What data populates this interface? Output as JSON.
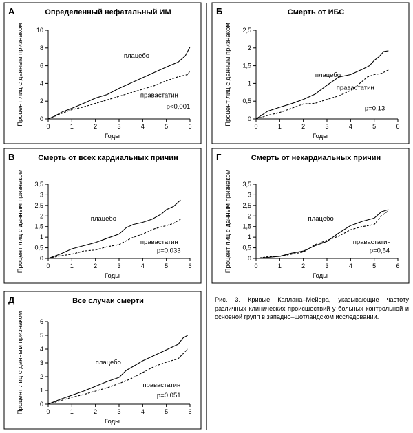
{
  "caption": "Рис. 3. Кривые Каплана–Мейера, указывающие частоту различных клинических происшествий у больных контрольной и основной групп в западно–шотландском исследовании.",
  "chart_data": [
    {
      "type": "line",
      "panel_letter": "А",
      "title": "Определенный нефатальный ИМ",
      "xlabel": "Годы",
      "ylabel": "Процент лиц с данным признаком",
      "xlim": [
        0,
        6
      ],
      "ylim": [
        0,
        10
      ],
      "x_ticks": [
        "0",
        "1",
        "2",
        "3",
        "4",
        "5",
        "6"
      ],
      "y_ticks": [
        "0",
        "2",
        "4",
        "6",
        "8",
        "10"
      ],
      "p_value": "p<0,001",
      "series": [
        {
          "name": "плацебо",
          "style": "solid",
          "points": [
            [
              0,
              0
            ],
            [
              0.3,
              0.35
            ],
            [
              0.6,
              0.8
            ],
            [
              1,
              1.2
            ],
            [
              1.5,
              1.75
            ],
            [
              2,
              2.35
            ],
            [
              2.5,
              2.75
            ],
            [
              3,
              3.45
            ],
            [
              3.5,
              4.05
            ],
            [
              4,
              4.65
            ],
            [
              4.5,
              5.25
            ],
            [
              5,
              5.85
            ],
            [
              5.5,
              6.4
            ],
            [
              5.8,
              7.1
            ],
            [
              6,
              8.1
            ]
          ]
        },
        {
          "name": "правастатин",
          "style": "dashed",
          "points": [
            [
              0,
              0
            ],
            [
              0.5,
              0.55
            ],
            [
              1,
              1.05
            ],
            [
              1.5,
              1.35
            ],
            [
              2,
              1.75
            ],
            [
              2.5,
              2.15
            ],
            [
              3,
              2.55
            ],
            [
              3.5,
              2.95
            ],
            [
              4,
              3.35
            ],
            [
              4.5,
              3.75
            ],
            [
              5,
              4.3
            ],
            [
              5.5,
              4.75
            ],
            [
              5.9,
              5.0
            ],
            [
              6,
              5.4
            ]
          ]
        }
      ],
      "series_label_positions": [
        [
          3.2,
          6.9
        ],
        [
          3.9,
          2.45
        ]
      ],
      "p_position": [
        5.0,
        1.15
      ]
    },
    {
      "type": "line",
      "panel_letter": "Б",
      "title": "Смерть от ИБС",
      "xlabel": "Годы",
      "ylabel": "Процент лиц с данным признаком",
      "xlim": [
        0,
        6
      ],
      "ylim": [
        0,
        2.5
      ],
      "x_ticks": [
        "0",
        "1",
        "2",
        "3",
        "4",
        "5",
        "6"
      ],
      "y_ticks": [
        "0",
        "0,5",
        "1",
        "1,5",
        "2",
        "2,5"
      ],
      "p_value": "p=0,13",
      "series": [
        {
          "name": "плацебо",
          "style": "solid",
          "points": [
            [
              0,
              0
            ],
            [
              0.5,
              0.22
            ],
            [
              1,
              0.33
            ],
            [
              1.5,
              0.43
            ],
            [
              2,
              0.55
            ],
            [
              2.5,
              0.7
            ],
            [
              3,
              0.95
            ],
            [
              3.5,
              1.18
            ],
            [
              4,
              1.25
            ],
            [
              4.5,
              1.4
            ],
            [
              4.8,
              1.5
            ],
            [
              5,
              1.65
            ],
            [
              5.2,
              1.75
            ],
            [
              5.4,
              1.9
            ],
            [
              5.6,
              1.92
            ]
          ]
        },
        {
          "name": "правастатин",
          "style": "dashed",
          "points": [
            [
              0,
              0
            ],
            [
              0.5,
              0.1
            ],
            [
              1,
              0.18
            ],
            [
              1.5,
              0.3
            ],
            [
              2,
              0.42
            ],
            [
              2.5,
              0.44
            ],
            [
              3,
              0.55
            ],
            [
              3.5,
              0.65
            ],
            [
              4,
              0.8
            ],
            [
              4.3,
              0.95
            ],
            [
              4.7,
              1.18
            ],
            [
              5.0,
              1.25
            ],
            [
              5.3,
              1.28
            ],
            [
              5.6,
              1.38
            ]
          ]
        }
      ],
      "series_label_positions": [
        [
          2.5,
          1.18
        ],
        [
          3.4,
          0.82
        ]
      ],
      "p_position": [
        4.6,
        0.24
      ]
    },
    {
      "type": "line",
      "panel_letter": "В",
      "title": "Смерть от всех кардиальных причин",
      "xlabel": "Годы",
      "ylabel": "Процент лиц с данным признаком",
      "xlim": [
        0,
        6
      ],
      "ylim": [
        0,
        3.5
      ],
      "x_ticks": [
        "0",
        "1",
        "2",
        "3",
        "4",
        "5",
        "6"
      ],
      "y_ticks": [
        "0",
        "0,5",
        "1",
        "1,5",
        "2",
        "2,5",
        "3",
        "3,5"
      ],
      "p_value": "p=0,033",
      "series": [
        {
          "name": "плацебо",
          "style": "solid",
          "points": [
            [
              0,
              0
            ],
            [
              0.5,
              0.2
            ],
            [
              1,
              0.45
            ],
            [
              1.5,
              0.6
            ],
            [
              2,
              0.75
            ],
            [
              2.5,
              0.95
            ],
            [
              3,
              1.15
            ],
            [
              3.3,
              1.45
            ],
            [
              3.6,
              1.6
            ],
            [
              4,
              1.7
            ],
            [
              4.4,
              1.85
            ],
            [
              4.8,
              2.1
            ],
            [
              5,
              2.3
            ],
            [
              5.3,
              2.45
            ],
            [
              5.6,
              2.75
            ]
          ]
        },
        {
          "name": "правастатин",
          "style": "dashed",
          "points": [
            [
              0,
              0
            ],
            [
              0.5,
              0.12
            ],
            [
              1,
              0.2
            ],
            [
              1.5,
              0.35
            ],
            [
              2,
              0.4
            ],
            [
              2.5,
              0.55
            ],
            [
              3,
              0.65
            ],
            [
              3.5,
              0.95
            ],
            [
              4,
              1.15
            ],
            [
              4.5,
              1.4
            ],
            [
              5,
              1.55
            ],
            [
              5.3,
              1.65
            ],
            [
              5.6,
              1.85
            ]
          ]
        }
      ],
      "series_label_positions": [
        [
          1.8,
          1.78
        ],
        [
          3.9,
          0.68
        ]
      ],
      "p_position": [
        4.6,
        0.28
      ]
    },
    {
      "type": "line",
      "panel_letter": "Г",
      "title": "Смерть от некардиальных причин",
      "xlabel": "Годы",
      "ylabel": "Процент лиц с данным признаком",
      "xlim": [
        0,
        6
      ],
      "ylim": [
        0,
        3.5
      ],
      "x_ticks": [
        "0",
        "1",
        "2",
        "3",
        "4",
        "5",
        "6"
      ],
      "y_ticks": [
        "0",
        "0,5",
        "1",
        "1,5",
        "2",
        "2,5",
        "3",
        "3,5"
      ],
      "p_value": "p=0,54",
      "series": [
        {
          "name": "плацебо",
          "style": "solid",
          "points": [
            [
              0,
              0
            ],
            [
              0.5,
              0.05
            ],
            [
              1,
              0.1
            ],
            [
              1.5,
              0.25
            ],
            [
              2,
              0.35
            ],
            [
              2.5,
              0.6
            ],
            [
              3,
              0.8
            ],
            [
              3.5,
              1.2
            ],
            [
              4,
              1.55
            ],
            [
              4.5,
              1.75
            ],
            [
              5,
              1.9
            ],
            [
              5.3,
              2.2
            ],
            [
              5.6,
              2.3
            ]
          ]
        },
        {
          "name": "правастатин",
          "style": "dashed",
          "points": [
            [
              0,
              0
            ],
            [
              0.5,
              0.08
            ],
            [
              1,
              0.1
            ],
            [
              1.5,
              0.2
            ],
            [
              2,
              0.3
            ],
            [
              2.5,
              0.65
            ],
            [
              3,
              0.85
            ],
            [
              3.5,
              1.05
            ],
            [
              4,
              1.35
            ],
            [
              4.5,
              1.5
            ],
            [
              5,
              1.6
            ],
            [
              5.3,
              2.0
            ],
            [
              5.6,
              2.25
            ]
          ]
        }
      ],
      "series_label_positions": [
        [
          2.2,
          1.78
        ],
        [
          4.1,
          0.68
        ]
      ],
      "p_position": [
        4.8,
        0.28
      ]
    },
    {
      "type": "line",
      "panel_letter": "Д",
      "title": "Все случаи смерти",
      "xlabel": "Годы",
      "ylabel": "Процент лиц с данным признаком",
      "xlim": [
        0,
        6
      ],
      "ylim": [
        0,
        6
      ],
      "x_ticks": [
        "0",
        "1",
        "2",
        "3",
        "4",
        "5",
        "6"
      ],
      "y_ticks": [
        "0",
        "1",
        "2",
        "3",
        "4",
        "5",
        "6"
      ],
      "p_value": "p=0,051",
      "series": [
        {
          "name": "плацебо",
          "style": "solid",
          "points": [
            [
              0,
              0
            ],
            [
              0.5,
              0.35
            ],
            [
              1,
              0.65
            ],
            [
              1.5,
              0.95
            ],
            [
              2,
              1.3
            ],
            [
              2.5,
              1.65
            ],
            [
              3,
              1.95
            ],
            [
              3.3,
              2.45
            ],
            [
              3.6,
              2.75
            ],
            [
              4,
              3.15
            ],
            [
              4.5,
              3.55
            ],
            [
              5,
              3.95
            ],
            [
              5.5,
              4.35
            ],
            [
              5.7,
              4.8
            ],
            [
              5.9,
              5.0
            ]
          ]
        },
        {
          "name": "правастатин",
          "style": "dashed",
          "points": [
            [
              0,
              0
            ],
            [
              0.5,
              0.25
            ],
            [
              1,
              0.5
            ],
            [
              1.5,
              0.7
            ],
            [
              2,
              0.95
            ],
            [
              2.5,
              1.2
            ],
            [
              3,
              1.5
            ],
            [
              3.5,
              1.85
            ],
            [
              4,
              2.3
            ],
            [
              4.5,
              2.75
            ],
            [
              5,
              3.05
            ],
            [
              5.5,
              3.3
            ],
            [
              5.9,
              4.0
            ]
          ]
        }
      ],
      "series_label_positions": [
        [
          2.0,
          2.9
        ],
        [
          4.0,
          1.25
        ]
      ],
      "p_position": [
        4.6,
        0.5
      ]
    }
  ]
}
